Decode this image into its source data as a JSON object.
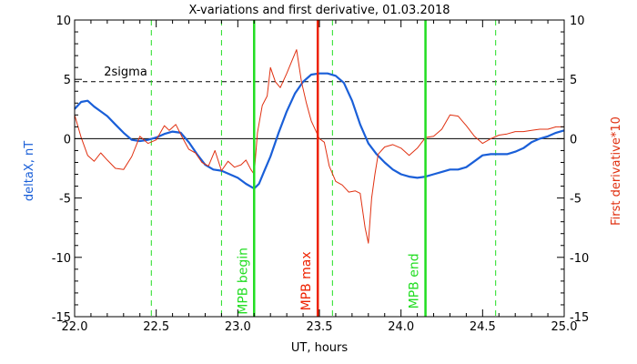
{
  "chart_data": {
    "type": "line",
    "title": "X-variations and first derivative, 01.03.2018",
    "xlabel": "UT, hours",
    "ylabel_left": "deltaX, nT",
    "ylabel_right": "First derivative*10",
    "xlim": [
      22.0,
      25.0
    ],
    "ylim": [
      -15,
      10
    ],
    "xticks": [
      "22.0",
      "22.5",
      "23.0",
      "23.5",
      "24.0",
      "24.5",
      "25.0"
    ],
    "yticks": [
      "10",
      "5",
      "0",
      "-5",
      "-10",
      "-15"
    ],
    "threshold": {
      "label": "2sigma",
      "value": 4.8
    },
    "colors": {
      "deltaX": "#1a5fd8",
      "derivative": "#e03010",
      "mpb_edge": "#22dd22",
      "mpb_max": "#ee2200"
    },
    "markers": [
      {
        "label": "MPB begin",
        "x": 23.1,
        "style": "solid",
        "color": "#22dd22"
      },
      {
        "label": "MPB max",
        "x": 23.49,
        "style": "solid",
        "color": "#ee2200"
      },
      {
        "label": "MPB end",
        "x": 24.15,
        "style": "solid",
        "color": "#22dd22"
      }
    ],
    "dashed_lines": [
      22.47,
      22.9,
      23.58,
      24.58
    ],
    "series": [
      {
        "key": "deltaX",
        "x": [
          22.0,
          22.04,
          22.08,
          22.12,
          22.16,
          22.2,
          22.25,
          22.3,
          22.35,
          22.4,
          22.45,
          22.5,
          22.55,
          22.6,
          22.65,
          22.7,
          22.75,
          22.8,
          22.85,
          22.9,
          22.95,
          23.0,
          23.05,
          23.1,
          23.13,
          23.16,
          23.2,
          23.25,
          23.3,
          23.35,
          23.4,
          23.45,
          23.5,
          23.55,
          23.6,
          23.65,
          23.7,
          23.75,
          23.8,
          23.85,
          23.9,
          23.95,
          24.0,
          24.05,
          24.1,
          24.15,
          24.2,
          24.25,
          24.3,
          24.35,
          24.4,
          24.45,
          24.5,
          24.55,
          24.6,
          24.65,
          24.7,
          24.75,
          24.8,
          24.85,
          24.9,
          24.95,
          25.0
        ],
        "values": [
          2.5,
          3.1,
          3.2,
          2.7,
          2.3,
          1.9,
          1.2,
          0.5,
          -0.1,
          -0.2,
          -0.1,
          0.1,
          0.4,
          0.6,
          0.5,
          -0.3,
          -1.3,
          -2.2,
          -2.6,
          -2.7,
          -3.0,
          -3.3,
          -3.8,
          -4.2,
          -3.8,
          -2.8,
          -1.5,
          0.5,
          2.3,
          3.8,
          4.8,
          5.4,
          5.5,
          5.5,
          5.3,
          4.7,
          3.2,
          1.2,
          -0.4,
          -1.3,
          -2.0,
          -2.6,
          -3.0,
          -3.2,
          -3.3,
          -3.2,
          -3.0,
          -2.8,
          -2.6,
          -2.6,
          -2.4,
          -1.9,
          -1.4,
          -1.3,
          -1.3,
          -1.3,
          -1.1,
          -0.8,
          -0.3,
          0.0,
          0.2,
          0.5,
          0.7
        ]
      },
      {
        "key": "derivative",
        "x": [
          22.0,
          22.04,
          22.08,
          22.12,
          22.16,
          22.2,
          22.25,
          22.3,
          22.35,
          22.4,
          22.45,
          22.5,
          22.55,
          22.58,
          22.62,
          22.66,
          22.7,
          22.74,
          22.78,
          22.82,
          22.86,
          22.9,
          22.94,
          22.98,
          23.02,
          23.05,
          23.08,
          23.1,
          23.12,
          23.15,
          23.18,
          23.2,
          23.23,
          23.26,
          23.3,
          23.33,
          23.36,
          23.39,
          23.42,
          23.45,
          23.48,
          23.5,
          23.53,
          23.56,
          23.6,
          23.64,
          23.68,
          23.72,
          23.75,
          23.78,
          23.8,
          23.82,
          23.84,
          23.86,
          23.9,
          23.95,
          24.0,
          24.05,
          24.1,
          24.15,
          24.2,
          24.25,
          24.3,
          24.35,
          24.4,
          24.45,
          24.5,
          24.55,
          24.6,
          24.65,
          24.7,
          24.75,
          24.8,
          24.85,
          24.9,
          24.95,
          25.0
        ],
        "values": [
          2.0,
          0.1,
          -1.4,
          -1.9,
          -1.2,
          -1.8,
          -2.5,
          -2.6,
          -1.5,
          0.2,
          -0.4,
          -0.1,
          1.1,
          0.7,
          1.2,
          0.1,
          -0.9,
          -1.2,
          -2.0,
          -2.3,
          -1.0,
          -2.7,
          -1.9,
          -2.4,
          -2.2,
          -1.8,
          -2.6,
          -3.0,
          0.5,
          2.8,
          3.6,
          6.0,
          4.8,
          4.3,
          5.5,
          6.5,
          7.5,
          4.8,
          3.0,
          1.5,
          0.6,
          0.0,
          -0.3,
          -2.3,
          -3.6,
          -3.9,
          -4.5,
          -4.4,
          -4.6,
          -7.5,
          -8.8,
          -5.0,
          -3.0,
          -1.3,
          -0.7,
          -0.5,
          -0.8,
          -1.4,
          -0.8,
          0.1,
          0.2,
          0.8,
          2.0,
          1.9,
          1.1,
          0.2,
          -0.4,
          0.0,
          0.3,
          0.4,
          0.6,
          0.6,
          0.7,
          0.8,
          0.8,
          1.0,
          1.0
        ]
      }
    ]
  }
}
